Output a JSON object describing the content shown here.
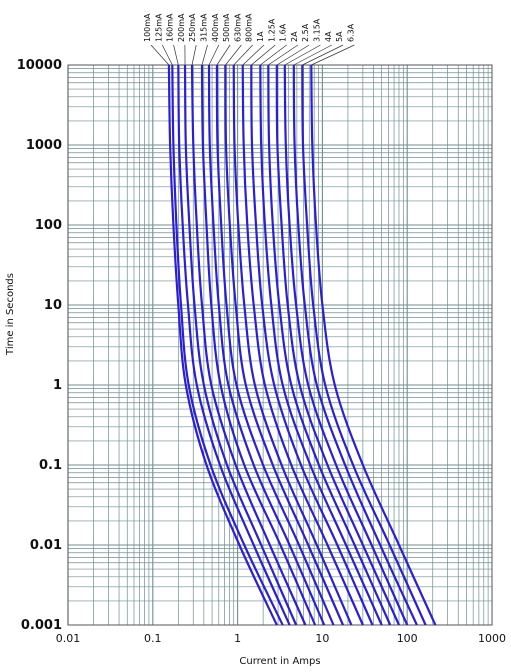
{
  "chart_data": {
    "type": "line",
    "title": "",
    "xlabel": "Current in Amps",
    "ylabel": "Time in Seconds",
    "x_scale": "log",
    "y_scale": "log",
    "xlim": [
      0.01,
      1000
    ],
    "ylim": [
      0.001,
      10000
    ],
    "x_ticks": [
      "0.01",
      "0.1",
      "1",
      "10",
      "100",
      "1000"
    ],
    "y_ticks": [
      "0.001",
      "0.01",
      "0.1",
      "1",
      "10",
      "100",
      "1000",
      "10000"
    ],
    "grid": true,
    "grid_color": "#6f8f8f",
    "line_color": "#2b1fd6",
    "legend": "rating labels along top edge",
    "series": [
      {
        "name": "100mA",
        "points": [
          [
            0.155,
            10000
          ],
          [
            0.16,
            1000
          ],
          [
            0.175,
            100
          ],
          [
            0.2,
            10
          ],
          [
            0.245,
            1
          ],
          [
            0.43,
            0.1
          ],
          [
            1.05,
            0.01
          ],
          [
            2.9,
            0.001
          ]
        ]
      },
      {
        "name": "125mA",
        "points": [
          [
            0.17,
            10000
          ],
          [
            0.175,
            1000
          ],
          [
            0.19,
            100
          ],
          [
            0.215,
            10
          ],
          [
            0.265,
            1
          ],
          [
            0.48,
            0.1
          ],
          [
            1.2,
            0.01
          ],
          [
            3.4,
            0.001
          ]
        ]
      },
      {
        "name": "160mA",
        "points": [
          [
            0.2,
            10000
          ],
          [
            0.205,
            1000
          ],
          [
            0.225,
            100
          ],
          [
            0.26,
            10
          ],
          [
            0.33,
            1
          ],
          [
            0.62,
            0.1
          ],
          [
            1.55,
            0.01
          ],
          [
            4.1,
            0.001
          ]
        ]
      },
      {
        "name": "200mA",
        "points": [
          [
            0.24,
            10000
          ],
          [
            0.245,
            1000
          ],
          [
            0.27,
            100
          ],
          [
            0.31,
            10
          ],
          [
            0.4,
            1
          ],
          [
            0.75,
            0.1
          ],
          [
            1.9,
            0.01
          ],
          [
            4.9,
            0.001
          ]
        ]
      },
      {
        "name": "250mA",
        "points": [
          [
            0.29,
            10000
          ],
          [
            0.3,
            1000
          ],
          [
            0.33,
            100
          ],
          [
            0.38,
            10
          ],
          [
            0.49,
            1
          ],
          [
            0.95,
            0.1
          ],
          [
            2.4,
            0.01
          ],
          [
            6.3,
            0.001
          ]
        ]
      },
      {
        "name": "315mA",
        "points": [
          [
            0.38,
            10000
          ],
          [
            0.39,
            1000
          ],
          [
            0.43,
            100
          ],
          [
            0.49,
            10
          ],
          [
            0.63,
            1
          ],
          [
            1.2,
            0.1
          ],
          [
            3.2,
            0.01
          ],
          [
            8.2,
            0.001
          ]
        ]
      },
      {
        "name": "400mA",
        "points": [
          [
            0.46,
            10000
          ],
          [
            0.47,
            1000
          ],
          [
            0.52,
            100
          ],
          [
            0.6,
            10
          ],
          [
            0.78,
            1
          ],
          [
            1.55,
            0.1
          ],
          [
            4.1,
            0.01
          ],
          [
            10.5,
            0.001
          ]
        ]
      },
      {
        "name": "500mA",
        "points": [
          [
            0.57,
            10000
          ],
          [
            0.58,
            1000
          ],
          [
            0.64,
            100
          ],
          [
            0.74,
            10
          ],
          [
            0.97,
            1
          ],
          [
            2.0,
            0.1
          ],
          [
            5.3,
            0.01
          ],
          [
            13.5,
            0.001
          ]
        ]
      },
      {
        "name": "630mA",
        "points": [
          [
            0.72,
            10000
          ],
          [
            0.73,
            1000
          ],
          [
            0.81,
            100
          ],
          [
            0.95,
            10
          ],
          [
            1.25,
            1
          ],
          [
            2.6,
            0.1
          ],
          [
            6.8,
            0.01
          ],
          [
            17.5,
            0.001
          ]
        ]
      },
      {
        "name": "800mA",
        "points": [
          [
            0.9,
            10000
          ],
          [
            0.92,
            1000
          ],
          [
            1.02,
            100
          ],
          [
            1.2,
            10
          ],
          [
            1.6,
            1
          ],
          [
            3.3,
            0.1
          ],
          [
            8.6,
            0.01
          ],
          [
            22,
            0.001
          ]
        ]
      },
      {
        "name": "1A",
        "points": [
          [
            1.15,
            10000
          ],
          [
            1.18,
            1000
          ],
          [
            1.3,
            100
          ],
          [
            1.55,
            10
          ],
          [
            2.1,
            1
          ],
          [
            4.3,
            0.1
          ],
          [
            11.5,
            0.01
          ],
          [
            30,
            0.001
          ]
        ]
      },
      {
        "name": "1.25A",
        "points": [
          [
            1.45,
            10000
          ],
          [
            1.48,
            1000
          ],
          [
            1.65,
            100
          ],
          [
            1.95,
            10
          ],
          [
            2.7,
            1
          ],
          [
            5.6,
            0.1
          ],
          [
            15,
            0.01
          ],
          [
            39,
            0.001
          ]
        ]
      },
      {
        "name": "1.6A",
        "points": [
          [
            1.85,
            10000
          ],
          [
            1.9,
            1000
          ],
          [
            2.1,
            100
          ],
          [
            2.5,
            10
          ],
          [
            3.4,
            1
          ],
          [
            7.2,
            0.1
          ],
          [
            19,
            0.01
          ],
          [
            50,
            0.001
          ]
        ]
      },
      {
        "name": "2A",
        "points": [
          [
            2.3,
            10000
          ],
          [
            2.35,
            1000
          ],
          [
            2.6,
            100
          ],
          [
            3.1,
            10
          ],
          [
            4.3,
            1
          ],
          [
            9.1,
            0.1
          ],
          [
            24,
            0.01
          ],
          [
            63,
            0.001
          ]
        ]
      },
      {
        "name": "2.5A",
        "points": [
          [
            2.9,
            10000
          ],
          [
            2.95,
            1000
          ],
          [
            3.3,
            100
          ],
          [
            3.9,
            10
          ],
          [
            5.4,
            1
          ],
          [
            11.5,
            0.1
          ],
          [
            30,
            0.01
          ],
          [
            80,
            0.001
          ]
        ]
      },
      {
        "name": "3.15A",
        "points": [
          [
            3.6,
            10000
          ],
          [
            3.7,
            1000
          ],
          [
            4.1,
            100
          ],
          [
            4.9,
            10
          ],
          [
            6.8,
            1
          ],
          [
            14.5,
            0.1
          ],
          [
            38,
            0.01
          ],
          [
            100,
            0.001
          ]
        ]
      },
      {
        "name": "4A",
        "points": [
          [
            4.6,
            10000
          ],
          [
            4.7,
            1000
          ],
          [
            5.2,
            100
          ],
          [
            6.2,
            10
          ],
          [
            8.6,
            1
          ],
          [
            18.5,
            0.1
          ],
          [
            48,
            0.01
          ],
          [
            130,
            0.001
          ]
        ]
      },
      {
        "name": "5A",
        "points": [
          [
            5.8,
            10000
          ],
          [
            5.9,
            1000
          ],
          [
            6.6,
            100
          ],
          [
            7.8,
            10
          ],
          [
            10.8,
            1
          ],
          [
            23,
            0.1
          ],
          [
            62,
            0.01
          ],
          [
            165,
            0.001
          ]
        ]
      },
      {
        "name": "6.3A",
        "points": [
          [
            7.4,
            10000
          ],
          [
            7.6,
            1000
          ],
          [
            8.4,
            100
          ],
          [
            10,
            10
          ],
          [
            14,
            1
          ],
          [
            30,
            0.1
          ],
          [
            80,
            0.01
          ],
          [
            215,
            0.001
          ]
        ]
      }
    ]
  }
}
